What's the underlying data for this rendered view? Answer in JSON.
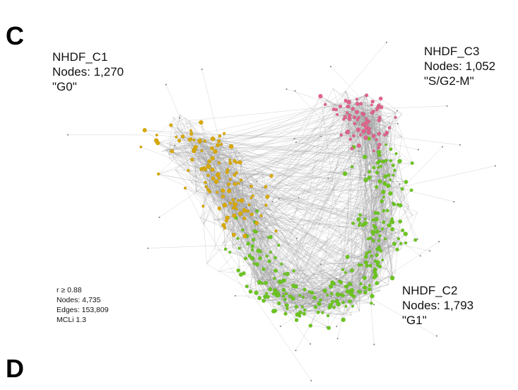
{
  "panels": {
    "top": "C",
    "bottom": "D"
  },
  "clusters": [
    {
      "name": "NHDF_C1",
      "nodes": "Nodes: 1,270",
      "phase": "\"G0\""
    },
    {
      "name": "NHDF_C3",
      "nodes": "Nodes: 1,052",
      "phase": "\"S/G2-M\""
    },
    {
      "name": "NHDF_C2",
      "nodes": "Nodes: 1,793",
      "phase": "\"G1\""
    }
  ],
  "stats": [
    "r ≥ 0.88",
    "Nodes: 4,735",
    "Edges: 153,809",
    "MCLi 1.3"
  ]
}
